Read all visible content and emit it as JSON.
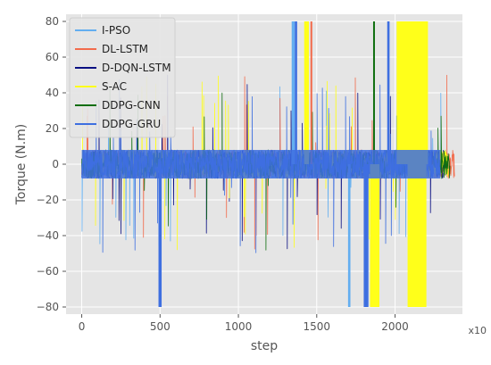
{
  "chart_data": {
    "type": "line",
    "xlabel": "step",
    "ylabel": "Torque (N.m)",
    "x_multiplier_label": "x10",
    "xlim": [
      -100,
      2430
    ],
    "ylim": [
      -84,
      84
    ],
    "x_ticks": [
      0,
      500,
      1000,
      1500,
      2000
    ],
    "y_ticks": [
      -80,
      -60,
      -40,
      -20,
      0,
      20,
      40,
      60,
      80
    ],
    "grid": true,
    "legend_position": "top-left",
    "background": "#e5e5e5",
    "series": [
      {
        "name": "I-PSO",
        "color": "#63aef0",
        "x_end": 2300
      },
      {
        "name": "DL-LSTM",
        "color": "#f26b4c",
        "x_end": 2380
      },
      {
        "name": "D-DQN-LSTM",
        "color": "#0a0f82",
        "x_end": 2320
      },
      {
        "name": "S-AC",
        "color": "#ffff1a",
        "x_end": 2340
      },
      {
        "name": "DDPG-CNN",
        "color": "#0f6e0f",
        "x_end": 2350
      },
      {
        "name": "DDPG-GRU",
        "color": "#3e6fe0",
        "x_end": 2290
      }
    ],
    "saturation_bands": [
      {
        "series": "I-PSO",
        "x_start": 1340,
        "x_end": 1360,
        "level": 80
      },
      {
        "series": "DDPG-GRU",
        "x_start": 490,
        "x_end": 510,
        "level": -80
      },
      {
        "series": "DDPG-GRU",
        "x_start": 1360,
        "x_end": 1375,
        "level": 80
      },
      {
        "series": "S-AC",
        "x_start": 1420,
        "x_end": 1450,
        "level": 80
      },
      {
        "series": "DL-LSTM",
        "x_start": 1460,
        "x_end": 1470,
        "level": 80
      },
      {
        "series": "I-PSO",
        "x_start": 1700,
        "x_end": 1715,
        "level": -80
      },
      {
        "series": "DDPG-GRU",
        "x_start": 1800,
        "x_end": 1830,
        "level": -80
      },
      {
        "series": "S-AC",
        "x_start": 1840,
        "x_end": 1900,
        "level": -80
      },
      {
        "series": "DDPG-CNN",
        "x_start": 1860,
        "x_end": 1870,
        "level": 80
      },
      {
        "series": "DDPG-GRU",
        "x_start": 1950,
        "x_end": 1965,
        "level": 80
      },
      {
        "series": "S-AC",
        "x_start": 2010,
        "x_end": 2210,
        "level": 80
      },
      {
        "series": "S-AC",
        "x_start": 2080,
        "x_end": 2200,
        "level": -80
      }
    ],
    "noise_band": [
      -8,
      8
    ]
  }
}
